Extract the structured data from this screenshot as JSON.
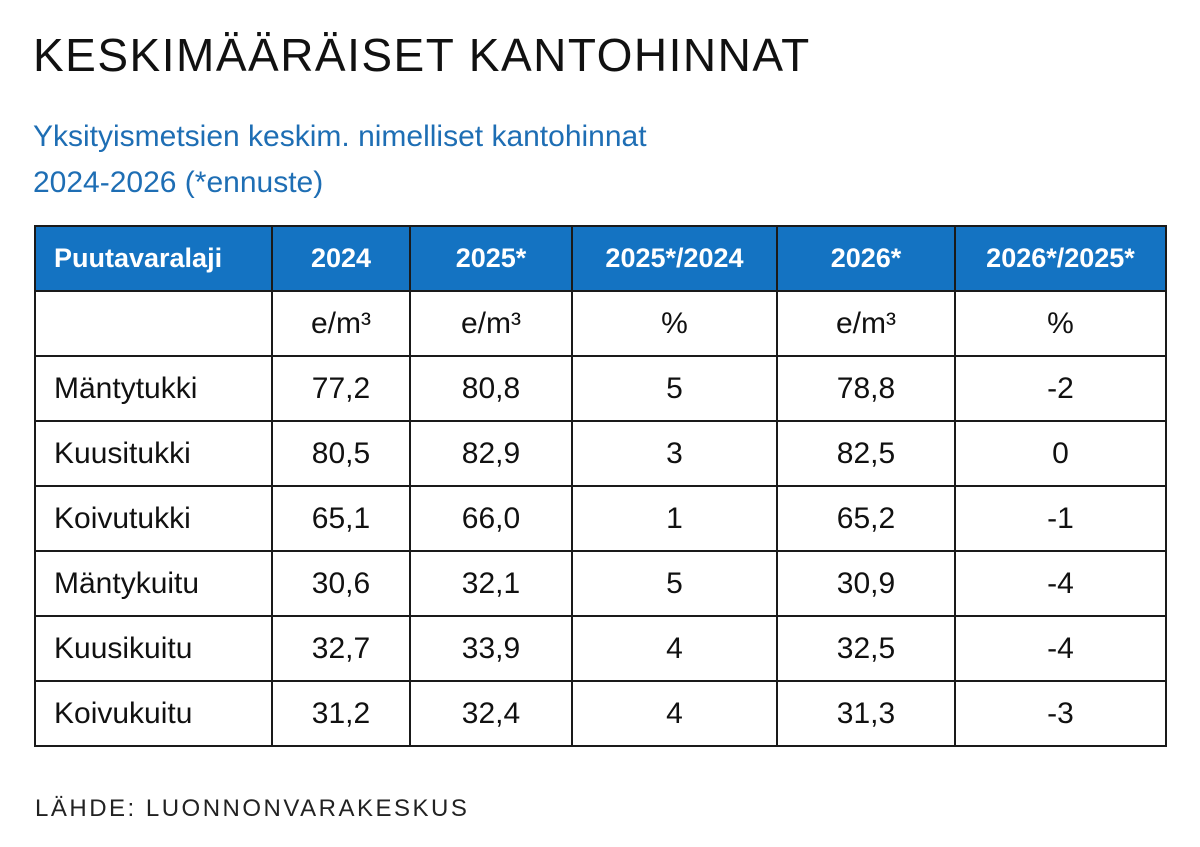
{
  "title": "KESKIMÄÄRÄISET KANTOHINNAT",
  "subtitle": {
    "line1": "Yksityismetsien keskim. nimelliset kantohinnat",
    "line2": "2024-2026 (*ennuste)"
  },
  "table": {
    "headers": [
      "Puutavaralaji",
      "2024",
      "2025*",
      "2025*/2024",
      "2026*",
      "2026*/2025*"
    ],
    "units": [
      "",
      "e/m³",
      "e/m³",
      "%",
      "e/m³",
      "%"
    ],
    "rows": [
      [
        "Mäntytukki",
        "77,2",
        "80,8",
        "5",
        "78,8",
        "-2"
      ],
      [
        "Kuusitukki",
        "80,5",
        "82,9",
        "3",
        "82,5",
        "0"
      ],
      [
        "Koivutukki",
        "65,1",
        "66,0",
        "1",
        "65,2",
        "-1"
      ],
      [
        "Mäntykuitu",
        "30,6",
        "32,1",
        "5",
        "30,9",
        "-4"
      ],
      [
        "Kuusikuitu",
        "32,7",
        "33,9",
        "4",
        "32,5",
        "-4"
      ],
      [
        "Koivukuitu",
        "31,2",
        "32,4",
        "4",
        "31,3",
        "-3"
      ]
    ]
  },
  "source": "LÄHDE: LUONNONVARAKESKUS",
  "colors": {
    "header_bg": "#1473c2",
    "subtitle": "#1e6eb4"
  }
}
